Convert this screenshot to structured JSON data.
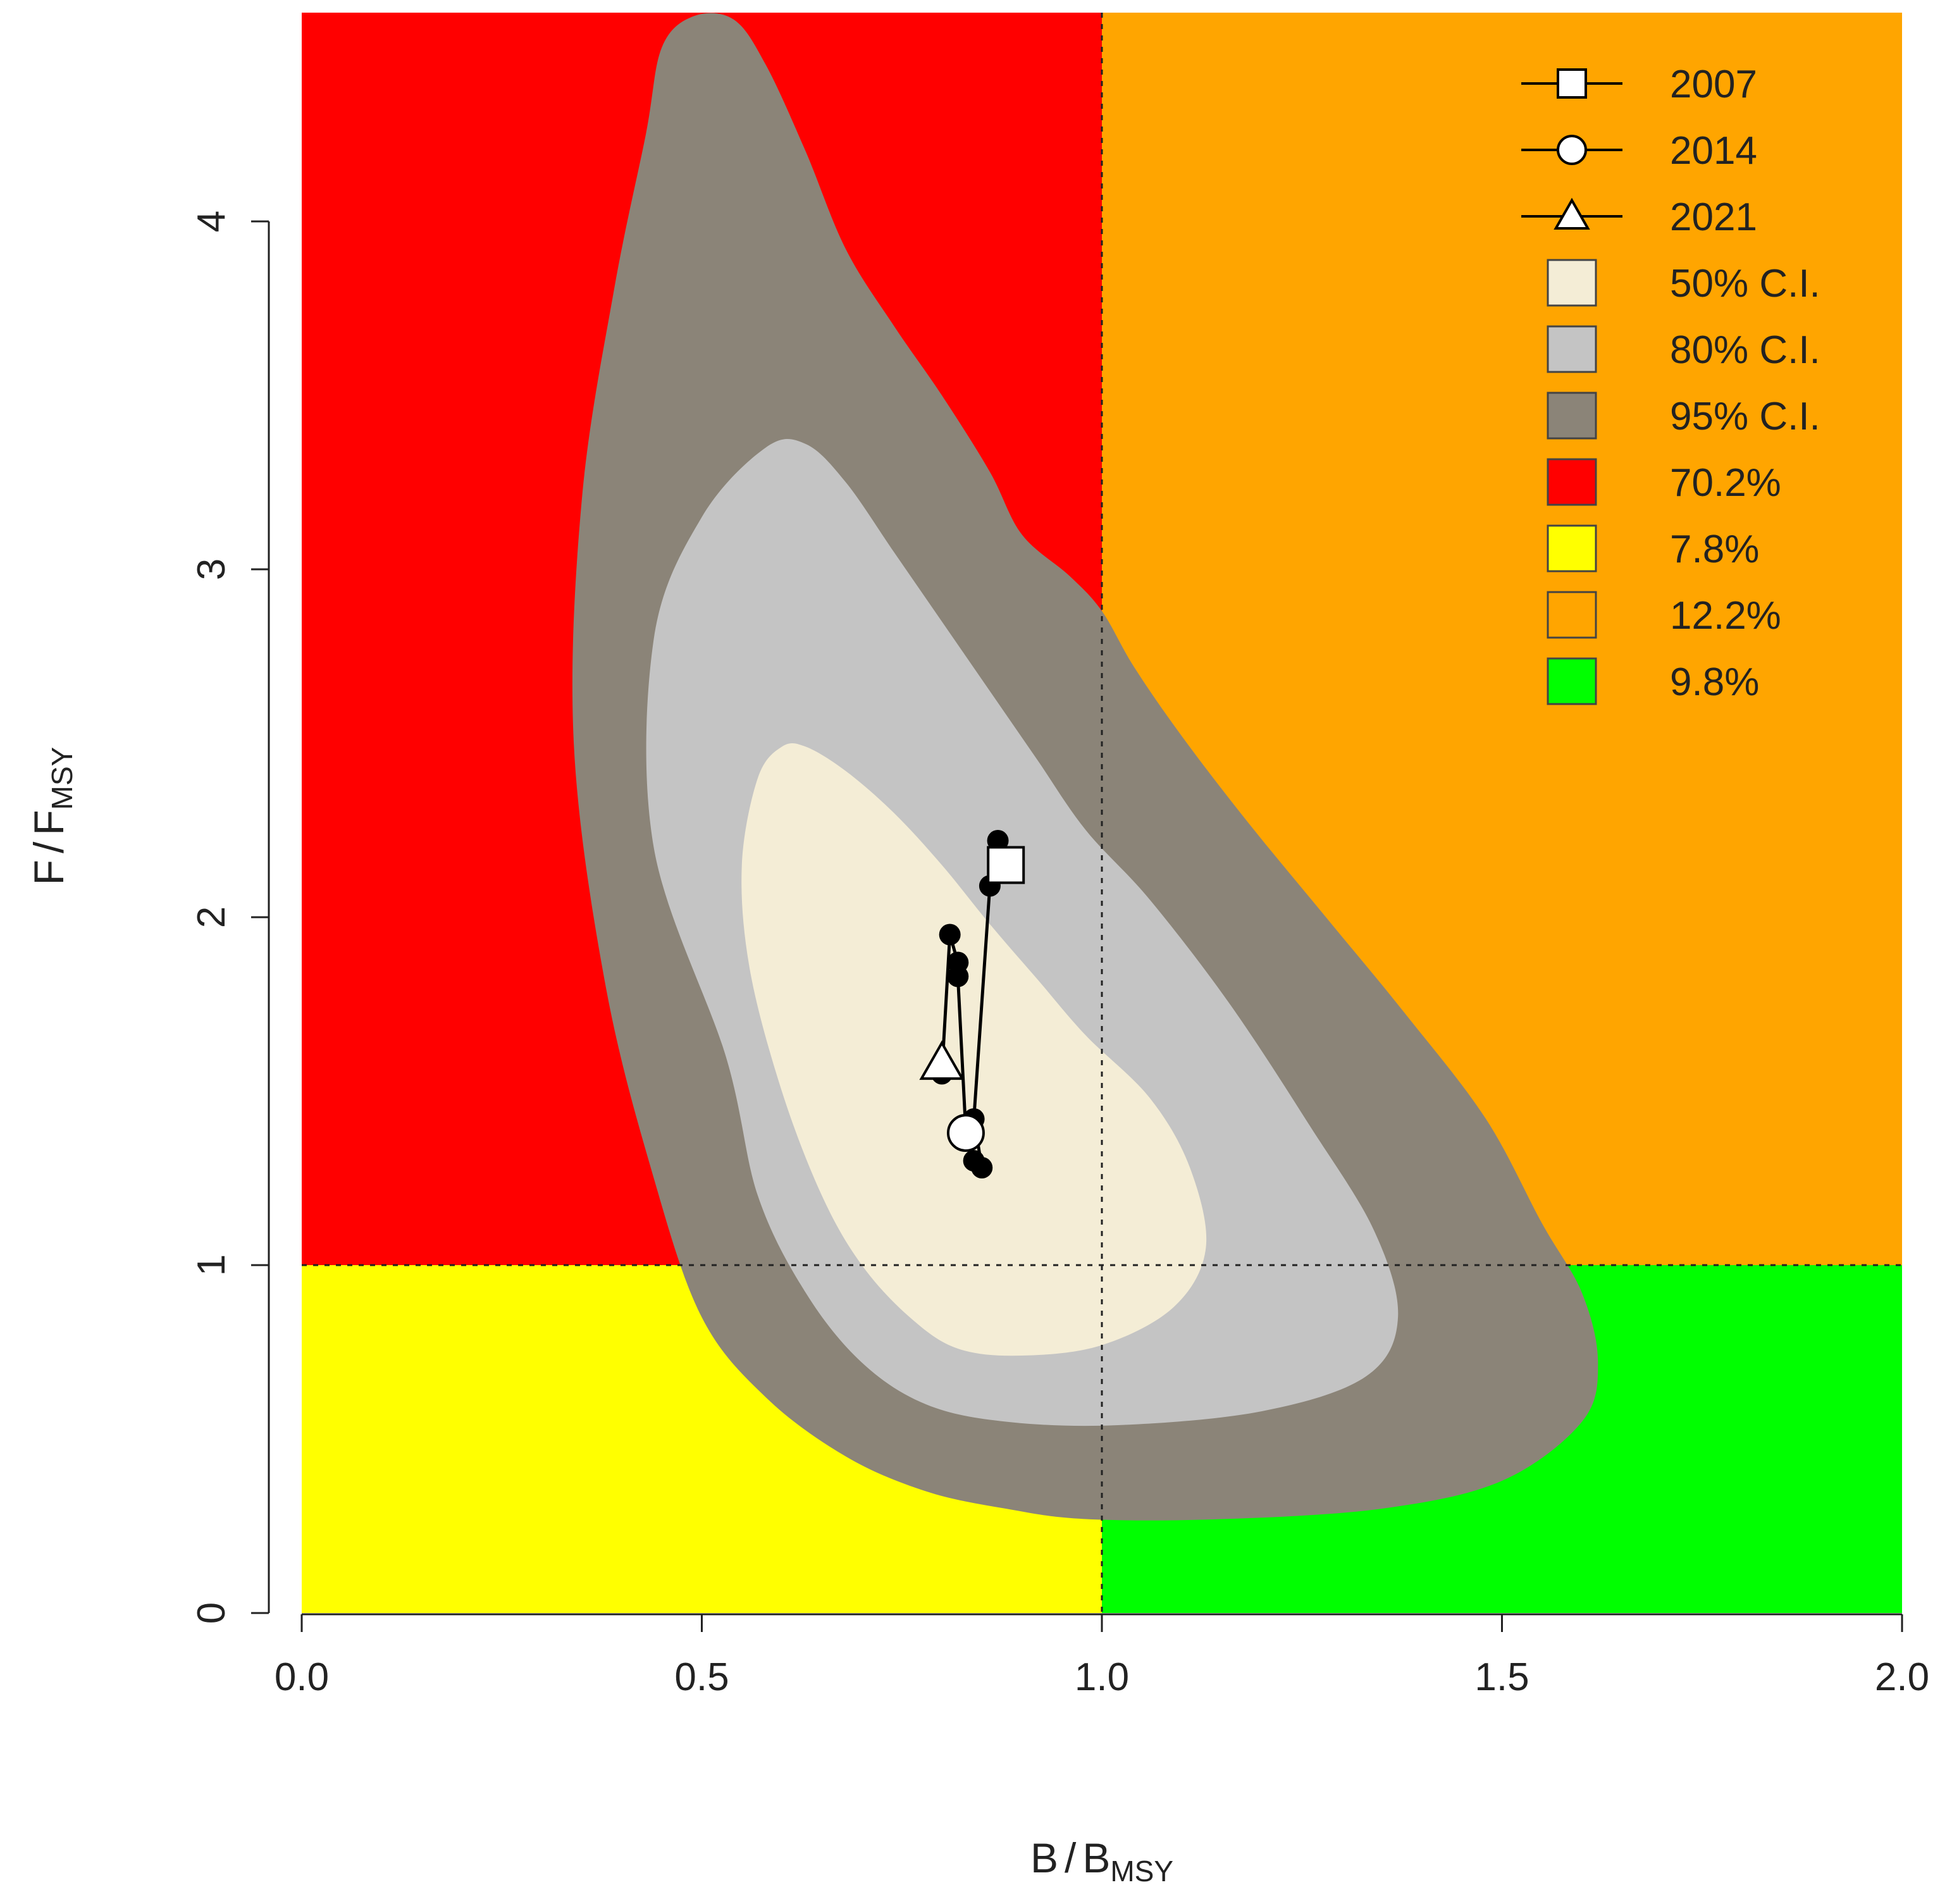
{
  "chart_data": {
    "type": "scatter",
    "title": "",
    "xlabel": {
      "main": "B",
      "sub": "MSY"
    },
    "ylabel": {
      "main": "F",
      "sub": "MSY"
    },
    "xlim": [
      0,
      2
    ],
    "ylim": [
      0,
      4.6
    ],
    "x_ticks": [
      "0.0",
      "0.5",
      "1.0",
      "1.5",
      "2.0"
    ],
    "y_ticks": [
      "0",
      "1",
      "2",
      "3",
      "4"
    ],
    "reference_lines": {
      "x": 1.0,
      "y": 1.0
    },
    "quadrants": [
      {
        "name": "overfished-overfishing",
        "x": [
          0,
          1
        ],
        "y": [
          1,
          4.6
        ],
        "color": "#ff0000",
        "percent": "70.2%"
      },
      {
        "name": "overfished-no-overfishing",
        "x": [
          0,
          1
        ],
        "y": [
          0,
          1
        ],
        "color": "#ffff00",
        "percent": "7.8%"
      },
      {
        "name": "not-overfished-overfishing",
        "x": [
          1,
          2
        ],
        "y": [
          1,
          4.6
        ],
        "color": "#ffa500",
        "percent": "12.2%"
      },
      {
        "name": "not-overfished-no-overfishing",
        "x": [
          1,
          2
        ],
        "y": [
          0,
          1
        ],
        "color": "#00ff00",
        "percent": "9.8%"
      }
    ],
    "confidence_regions": [
      {
        "label": "95% C.I.",
        "color": "#8b8478",
        "points": [
          [
            0.49,
            4.59
          ],
          [
            0.54,
            4.58
          ],
          [
            0.58,
            4.45
          ],
          [
            0.63,
            4.2
          ],
          [
            0.68,
            3.92
          ],
          [
            0.74,
            3.7
          ],
          [
            0.8,
            3.5
          ],
          [
            0.86,
            3.28
          ],
          [
            0.9,
            3.1
          ],
          [
            0.96,
            2.98
          ],
          [
            1.0,
            2.88
          ],
          [
            1.04,
            2.72
          ],
          [
            1.1,
            2.52
          ],
          [
            1.18,
            2.28
          ],
          [
            1.28,
            2.0
          ],
          [
            1.38,
            1.72
          ],
          [
            1.48,
            1.42
          ],
          [
            1.55,
            1.12
          ],
          [
            1.6,
            0.92
          ],
          [
            1.62,
            0.72
          ],
          [
            1.6,
            0.55
          ],
          [
            1.5,
            0.38
          ],
          [
            1.35,
            0.3
          ],
          [
            1.15,
            0.27
          ],
          [
            0.98,
            0.27
          ],
          [
            0.88,
            0.3
          ],
          [
            0.78,
            0.35
          ],
          [
            0.68,
            0.45
          ],
          [
            0.58,
            0.62
          ],
          [
            0.5,
            0.85
          ],
          [
            0.44,
            1.25
          ],
          [
            0.38,
            1.8
          ],
          [
            0.34,
            2.5
          ],
          [
            0.35,
            3.2
          ],
          [
            0.39,
            3.8
          ],
          [
            0.43,
            4.25
          ],
          [
            0.45,
            4.5
          ]
        ]
      },
      {
        "label": "80% C.I.",
        "color": "#c4c4c4",
        "points": [
          [
            0.58,
            3.35
          ],
          [
            0.63,
            3.36
          ],
          [
            0.68,
            3.25
          ],
          [
            0.74,
            3.05
          ],
          [
            0.8,
            2.85
          ],
          [
            0.86,
            2.65
          ],
          [
            0.92,
            2.45
          ],
          [
            0.98,
            2.25
          ],
          [
            1.06,
            2.05
          ],
          [
            1.16,
            1.75
          ],
          [
            1.26,
            1.4
          ],
          [
            1.34,
            1.1
          ],
          [
            1.37,
            0.85
          ],
          [
            1.33,
            0.68
          ],
          [
            1.2,
            0.58
          ],
          [
            1.02,
            0.54
          ],
          [
            0.88,
            0.55
          ],
          [
            0.78,
            0.6
          ],
          [
            0.7,
            0.72
          ],
          [
            0.63,
            0.92
          ],
          [
            0.57,
            1.2
          ],
          [
            0.53,
            1.6
          ],
          [
            0.44,
            2.2
          ],
          [
            0.44,
            2.8
          ],
          [
            0.5,
            3.15
          ]
        ]
      },
      {
        "label": "50% C.I.",
        "color": "#f4edd6",
        "points": [
          [
            0.6,
            2.49
          ],
          [
            0.63,
            2.49
          ],
          [
            0.68,
            2.42
          ],
          [
            0.74,
            2.3
          ],
          [
            0.8,
            2.15
          ],
          [
            0.86,
            1.98
          ],
          [
            0.92,
            1.82
          ],
          [
            0.98,
            1.66
          ],
          [
            1.06,
            1.48
          ],
          [
            1.11,
            1.28
          ],
          [
            1.13,
            1.05
          ],
          [
            1.09,
            0.88
          ],
          [
            1.0,
            0.77
          ],
          [
            0.9,
            0.74
          ],
          [
            0.82,
            0.76
          ],
          [
            0.76,
            0.85
          ],
          [
            0.7,
            1.0
          ],
          [
            0.65,
            1.2
          ],
          [
            0.6,
            1.5
          ],
          [
            0.56,
            1.85
          ],
          [
            0.55,
            2.15
          ],
          [
            0.57,
            2.4
          ]
        ]
      }
    ],
    "trajectory": [
      [
        0.88,
        2.15
      ],
      [
        0.87,
        2.22
      ],
      [
        0.86,
        2.09
      ],
      [
        0.84,
        1.42
      ],
      [
        0.85,
        1.28
      ],
      [
        0.84,
        1.3
      ],
      [
        0.83,
        1.38
      ],
      [
        0.82,
        1.83
      ],
      [
        0.82,
        1.87
      ],
      [
        0.81,
        1.95
      ],
      [
        0.8,
        1.55
      ],
      [
        0.8,
        1.58
      ]
    ],
    "markers": [
      {
        "year": "2007",
        "shape": "square",
        "x": 0.88,
        "y": 2.15
      },
      {
        "year": "2014",
        "shape": "circle",
        "x": 0.83,
        "y": 1.38
      },
      {
        "year": "2021",
        "shape": "triangle",
        "x": 0.8,
        "y": 1.58
      }
    ],
    "legend": {
      "position": "top-right",
      "entries": [
        {
          "label": "2007",
          "kind": "line-square",
          "color": "#ffffff"
        },
        {
          "label": "2014",
          "kind": "line-circle",
          "color": "#ffffff"
        },
        {
          "label": "2021",
          "kind": "line-triangle",
          "color": "#ffffff"
        },
        {
          "label": "50% C.I.",
          "kind": "box",
          "color": "#f4edd6"
        },
        {
          "label": "80% C.I.",
          "kind": "box",
          "color": "#c4c4c4"
        },
        {
          "label": "95% C.I.",
          "kind": "box",
          "color": "#8b8478"
        },
        {
          "label": "70.2%",
          "kind": "box",
          "color": "#ff0000"
        },
        {
          "label": "7.8%",
          "kind": "box",
          "color": "#ffff00"
        },
        {
          "label": "12.2%",
          "kind": "box",
          "color": "#ffa500"
        },
        {
          "label": "9.8%",
          "kind": "box",
          "color": "#00ff00"
        }
      ]
    }
  }
}
